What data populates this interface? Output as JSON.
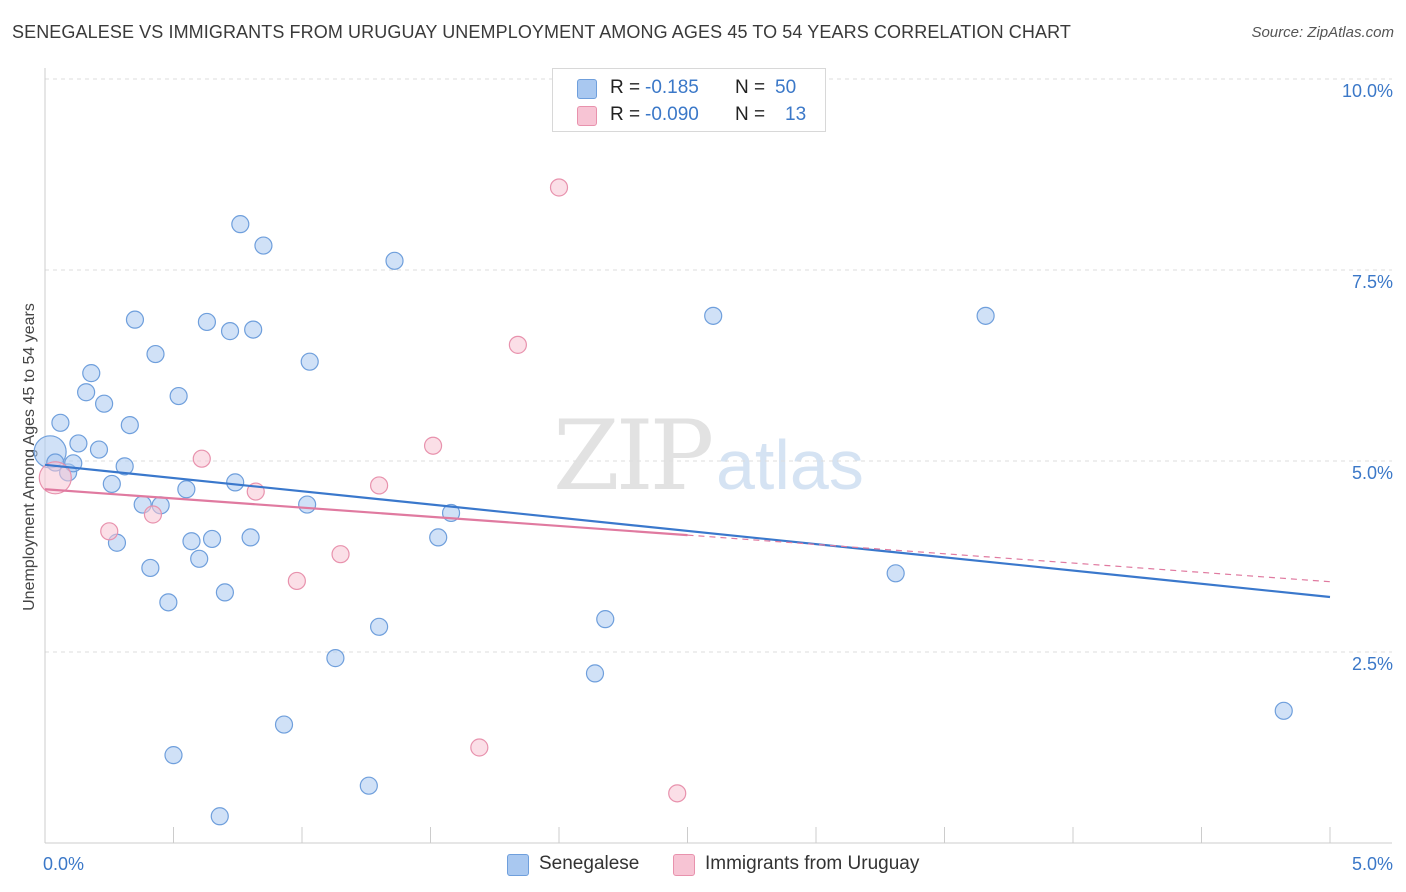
{
  "title": "SENEGALESE VS IMMIGRANTS FROM URUGUAY UNEMPLOYMENT AMONG AGES 45 TO 54 YEARS CORRELATION CHART",
  "source": "Source: ZipAtlas.com",
  "watermark": {
    "zip": "ZIP",
    "atlas": "atlas"
  },
  "legend_top": {
    "rows": [
      {
        "r_label": "R =",
        "r_value": "-0.185",
        "n_label": "N =",
        "n_value": "50",
        "color": "#a9c8f0",
        "border": "#6f9fdc"
      },
      {
        "r_label": "R =",
        "r_value": "-0.090",
        "n_label": "N =",
        "n_value": "13",
        "color": "#f7c4d4",
        "border": "#e892ad"
      }
    ]
  },
  "legend_bottom": [
    {
      "label": "Senegalese",
      "color": "#a9c8f0",
      "border": "#6f9fdc"
    },
    {
      "label": "Immigrants from Uruguay",
      "color": "#f7c4d4",
      "border": "#e892ad"
    }
  ],
  "chart_data": {
    "type": "scatter",
    "title": "SENEGALESE VS IMMIGRANTS FROM URUGUAY UNEMPLOYMENT AMONG AGES 45 TO 54 YEARS CORRELATION CHART",
    "xlabel": "",
    "ylabel": "Unemployment Among Ages 45 to 54 years",
    "xlim": [
      0,
      5
    ],
    "ylim": [
      0,
      10
    ],
    "x_tick_labels": [
      "0.0%",
      "5.0%"
    ],
    "y_ticks": [
      2.5,
      5.0,
      7.5,
      10.0
    ],
    "y_tick_labels": [
      "2.5%",
      "5.0%",
      "7.5%",
      "10.0%"
    ],
    "grid": true,
    "series": [
      {
        "name": "Senegalese",
        "color": "#a9c8f0",
        "edge": "#6f9fdc",
        "trend_color": "#3a78cc",
        "trend": {
          "x0": 0.0,
          "y0": 4.95,
          "x1": 5.0,
          "y1": 3.22
        },
        "points": [
          {
            "x": 0.02,
            "y": 5.12,
            "big": true
          },
          {
            "x": 0.04,
            "y": 4.98
          },
          {
            "x": 0.06,
            "y": 5.5
          },
          {
            "x": 0.09,
            "y": 4.85
          },
          {
            "x": 0.11,
            "y": 4.97
          },
          {
            "x": 0.13,
            "y": 5.23
          },
          {
            "x": 0.16,
            "y": 5.9
          },
          {
            "x": 0.18,
            "y": 6.15
          },
          {
            "x": 0.21,
            "y": 5.15
          },
          {
            "x": 0.23,
            "y": 5.75
          },
          {
            "x": 0.26,
            "y": 4.7
          },
          {
            "x": 0.28,
            "y": 3.93
          },
          {
            "x": 0.31,
            "y": 4.93
          },
          {
            "x": 0.33,
            "y": 5.47
          },
          {
            "x": 0.35,
            "y": 6.85
          },
          {
            "x": 0.38,
            "y": 4.43
          },
          {
            "x": 0.41,
            "y": 3.6
          },
          {
            "x": 0.43,
            "y": 6.4
          },
          {
            "x": 0.45,
            "y": 4.42
          },
          {
            "x": 0.48,
            "y": 3.15
          },
          {
            "x": 0.5,
            "y": 1.15
          },
          {
            "x": 0.52,
            "y": 5.85
          },
          {
            "x": 0.55,
            "y": 4.63
          },
          {
            "x": 0.57,
            "y": 3.95
          },
          {
            "x": 0.6,
            "y": 3.72
          },
          {
            "x": 0.63,
            "y": 6.82
          },
          {
            "x": 0.65,
            "y": 3.98
          },
          {
            "x": 0.68,
            "y": 0.35
          },
          {
            "x": 0.7,
            "y": 3.28
          },
          {
            "x": 0.72,
            "y": 6.7
          },
          {
            "x": 0.74,
            "y": 4.72
          },
          {
            "x": 0.76,
            "y": 8.1
          },
          {
            "x": 0.8,
            "y": 4.0
          },
          {
            "x": 0.81,
            "y": 6.72
          },
          {
            "x": 0.85,
            "y": 7.82
          },
          {
            "x": 0.93,
            "y": 1.55
          },
          {
            "x": 1.02,
            "y": 4.43
          },
          {
            "x": 1.03,
            "y": 6.3
          },
          {
            "x": 1.13,
            "y": 2.42
          },
          {
            "x": 1.26,
            "y": 0.75
          },
          {
            "x": 1.3,
            "y": 2.83
          },
          {
            "x": 1.36,
            "y": 7.62
          },
          {
            "x": 1.53,
            "y": 4.0
          },
          {
            "x": 1.58,
            "y": 4.32
          },
          {
            "x": 2.14,
            "y": 2.22
          },
          {
            "x": 2.18,
            "y": 2.93
          },
          {
            "x": 2.6,
            "y": 6.9
          },
          {
            "x": 3.31,
            "y": 3.53
          },
          {
            "x": 3.66,
            "y": 6.9
          },
          {
            "x": 4.82,
            "y": 1.73
          }
        ]
      },
      {
        "name": "Immigrants from Uruguay",
        "color": "#f7c4d4",
        "edge": "#e892ad",
        "trend_color": "#e07aa0",
        "trend": {
          "x0": 0.0,
          "y0": 4.63,
          "x1": 2.5,
          "y1": 4.03
        },
        "trend_dashed": {
          "x0": 2.5,
          "y0": 4.03,
          "x1": 5.0,
          "y1": 3.42
        },
        "points": [
          {
            "x": 0.04,
            "y": 4.78,
            "big": true
          },
          {
            "x": 0.25,
            "y": 4.08
          },
          {
            "x": 0.42,
            "y": 4.3
          },
          {
            "x": 0.61,
            "y": 5.03
          },
          {
            "x": 0.82,
            "y": 4.6
          },
          {
            "x": 0.98,
            "y": 3.43
          },
          {
            "x": 1.15,
            "y": 3.78
          },
          {
            "x": 1.3,
            "y": 4.68
          },
          {
            "x": 1.51,
            "y": 5.2
          },
          {
            "x": 1.69,
            "y": 1.25
          },
          {
            "x": 1.84,
            "y": 6.52
          },
          {
            "x": 2.0,
            "y": 8.58
          },
          {
            "x": 2.46,
            "y": 0.65
          }
        ]
      }
    ]
  }
}
